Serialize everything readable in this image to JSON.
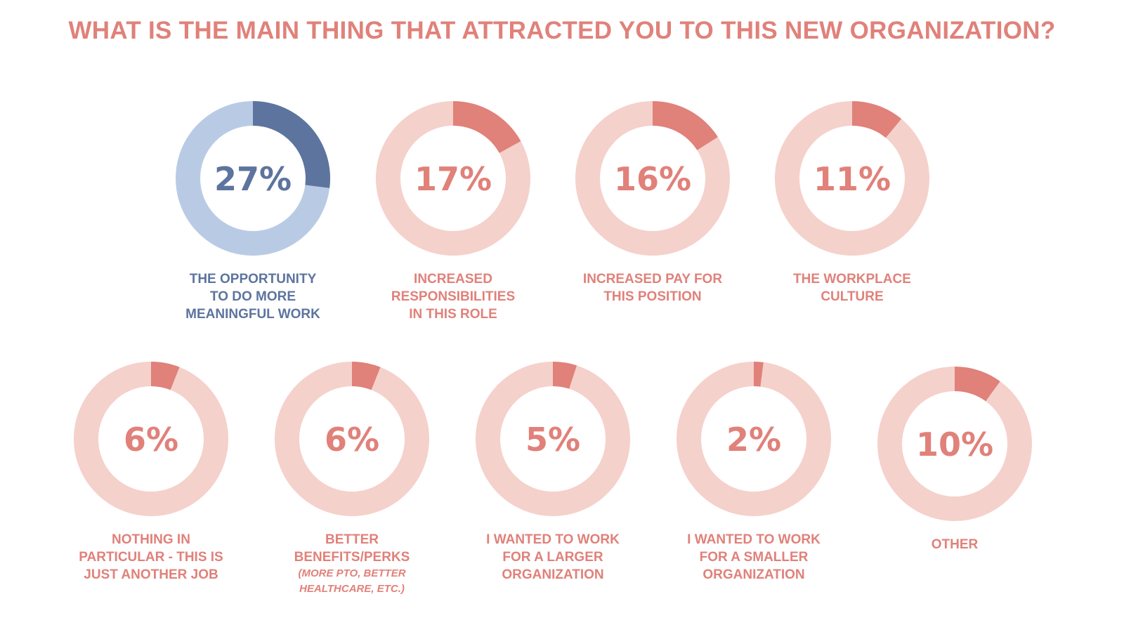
{
  "colors": {
    "title": "#e0817a",
    "blue_track": "#b9cbe4",
    "blue_fill": "#5d749e",
    "pink_track": "#f5d1cb",
    "pink_fill": "#e0817a"
  },
  "chart_data": {
    "type": "donut",
    "title": "WHAT IS THE MAIN THING THAT ATTRACTED YOU TO THIS NEW ORGANIZATION?",
    "categories": [
      "THE OPPORTUNITY TO DO MORE MEANINGFUL WORK",
      "INCREASED RESPONSIBILITIES IN THIS ROLE",
      "INCREASED PAY FOR THIS POSITION",
      "THE WORKPLACE CULTURE",
      "NOTHING IN PARTICULAR - THIS IS JUST ANOTHER JOB",
      "BETTER BENEFITS/PERKS (MORE PTO, BETTER HEALTHCARE, ETC.)",
      "I WANTED TO WORK FOR A LARGER ORGANIZATION",
      "I WANTED TO WORK FOR A SMALLER ORGANIZATION",
      "OTHER"
    ],
    "values": [
      27,
      17,
      16,
      11,
      6,
      6,
      5,
      2,
      10
    ],
    "unit": "%",
    "items": [
      {
        "value": 27,
        "label": "27%",
        "theme": "blue",
        "label_lines": [
          "THE OPPORTUNITY",
          "TO DO MORE",
          "MEANINGFUL WORK"
        ]
      },
      {
        "value": 17,
        "label": "17%",
        "theme": "pink",
        "label_lines": [
          "INCREASED",
          "RESPONSIBILITIES",
          "IN THIS ROLE"
        ]
      },
      {
        "value": 16,
        "label": "16%",
        "theme": "pink",
        "label_lines": [
          "INCREASED PAY FOR",
          "THIS POSITION"
        ]
      },
      {
        "value": 11,
        "label": "11%",
        "theme": "pink",
        "label_lines": [
          "THE WORKPLACE",
          "CULTURE"
        ]
      },
      {
        "value": 6,
        "label": "6%",
        "theme": "pink",
        "label_lines": [
          "NOTHING IN",
          "PARTICULAR - THIS IS",
          "JUST ANOTHER JOB"
        ]
      },
      {
        "value": 6,
        "label": "6%",
        "theme": "pink",
        "label_lines": [
          "BETTER",
          "BENEFITS/PERKS"
        ],
        "note_lines": [
          "(MORE PTO, BETTER",
          "HEALTHCARE, ETC.)"
        ]
      },
      {
        "value": 5,
        "label": "5%",
        "theme": "pink",
        "label_lines": [
          "I WANTED TO WORK",
          "FOR A LARGER",
          "ORGANIZATION"
        ]
      },
      {
        "value": 2,
        "label": "2%",
        "theme": "pink",
        "label_lines": [
          "I WANTED TO WORK",
          "FOR A SMALLER",
          "ORGANIZATION"
        ]
      },
      {
        "value": 10,
        "label": "10%",
        "theme": "pink",
        "label_lines": [
          "OTHER"
        ]
      }
    ]
  }
}
